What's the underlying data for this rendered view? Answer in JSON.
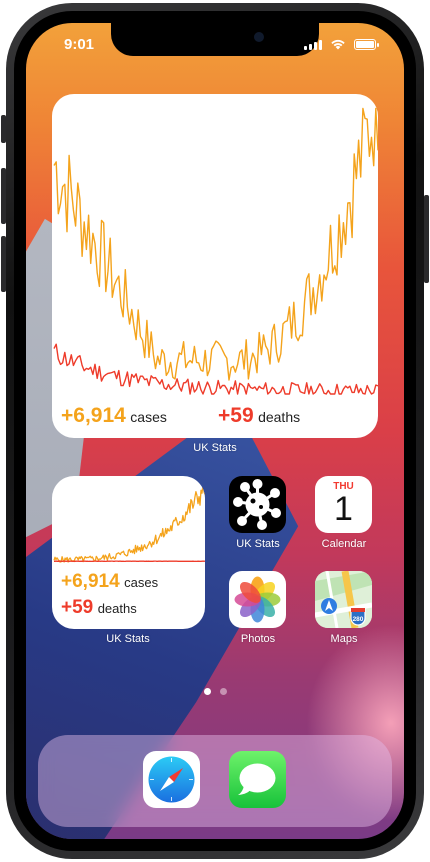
{
  "status_bar": {
    "time": "9:01"
  },
  "widget_large": {
    "cases": "+6,914",
    "cases_label": "cases",
    "deaths": "+59",
    "deaths_label": "deaths",
    "app_label": "UK Stats"
  },
  "widget_small": {
    "cases": "+6,914",
    "cases_label": "cases",
    "deaths": "+59",
    "deaths_label": "deaths",
    "app_label": "UK Stats"
  },
  "apps": [
    {
      "label": "UK Stats",
      "icon": "virus-icon"
    },
    {
      "label": "Calendar",
      "icon": "calendar-icon",
      "day": "THU",
      "date": "1"
    },
    {
      "label": "Photos",
      "icon": "photos-icon"
    },
    {
      "label": "Maps",
      "icon": "maps-icon",
      "badge": "280"
    }
  ],
  "page_indicator": {
    "count": 2,
    "active": 0
  },
  "dock": [
    {
      "icon": "safari-icon"
    },
    {
      "icon": "messages-icon"
    }
  ],
  "colors": {
    "cases": "#f4a31c",
    "deaths": "#ee3b2a"
  }
}
